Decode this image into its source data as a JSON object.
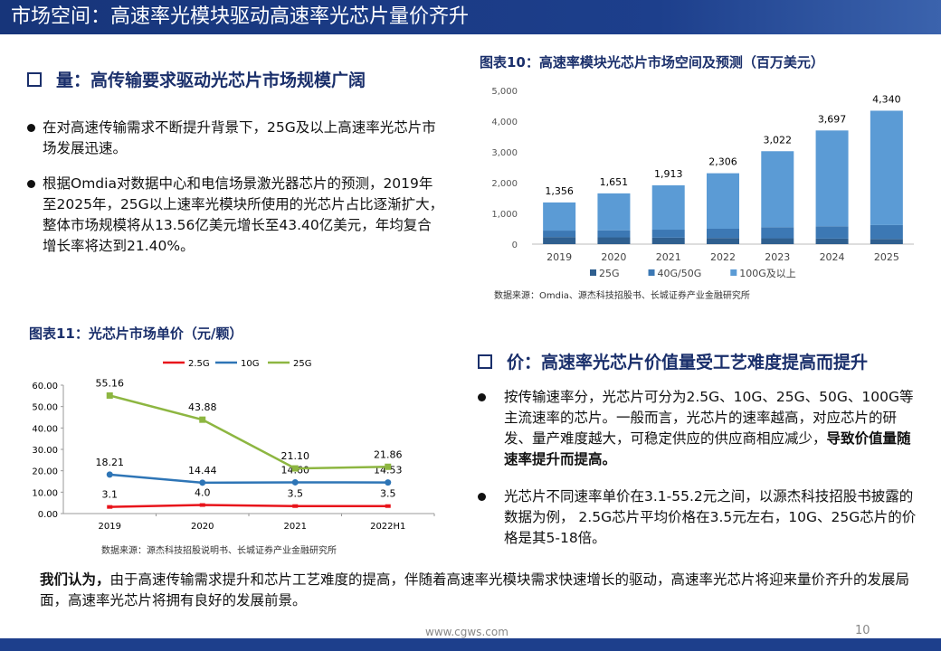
{
  "header": {
    "title": "市场空间：高速率光模块驱动高速率光芯片量价齐升"
  },
  "left_section": {
    "heading": "量：高传输要求驱动光芯片市场规模广阔",
    "bullets": [
      "在对高速传输需求不断提升背景下，25G及以上高速率光芯片市场发展迅速。",
      "根据Omdia对数据中心和电信场景激光器芯片的预测，2019年至2025年，25G以上速率光模块所使用的光芯片占比逐渐扩大，整体市场规模将从13.56亿美元增长至43.40亿美元，年均复合增长率将达到21.40%。"
    ]
  },
  "right_section": {
    "heading": "价：高速率光芯片价值量受工艺难度提高而提升",
    "bullets": [
      {
        "text": "按传输速率分，光芯片可分为2.5G、10G、25G、50G、100G等主流速率的芯片。一般而言，光芯片的速率越高，对应芯片的研发、量产难度越大，可稳定供应的供应商相应减少，",
        "bold": "导致价值量随速率提升而提高。"
      },
      {
        "text": "光芯片不同速率单价在3.1-55.2元之间，以源杰科技招股书披露的数据为例， 2.5G芯片平均价格在3.5元左右，10G、25G芯片的价格是其5-18倍。"
      }
    ]
  },
  "conclusion": {
    "bold": "我们认为，",
    "text": "由于高速传输需求提升和芯片工艺难度的提高，伴随着高速率光模块需求快速增长的驱动，高速率光芯片将迎来量价齐升的发展局面，高速率光芯片将拥有良好的发展前景。"
  },
  "footer": {
    "url": "www.cgws.com",
    "page": "10"
  },
  "chart_data": [
    {
      "type": "stacked-bar",
      "title": "图表10：高速率模块光芯片市场空间及预测（百万美元）",
      "source": "数据来源：Omdia、源杰科技招股书、长城证券产业金融研究所",
      "categories": [
        "2019",
        "2020",
        "2021",
        "2022",
        "2023",
        "2024",
        "2025"
      ],
      "series": [
        {
          "name": "25G",
          "color": "#2f5f8f",
          "values": [
            230,
            220,
            210,
            200,
            190,
            180,
            170
          ]
        },
        {
          "name": "40G/50G",
          "color": "#3c78b4",
          "values": [
            210,
            230,
            260,
            300,
            360,
            400,
            450
          ]
        },
        {
          "name": "100G及以上",
          "color": "#5b9bd5",
          "values": [
            916,
            1201,
            1443,
            1806,
            2472,
            3117,
            3720
          ]
        }
      ],
      "totals": {
        "values": [
          1356,
          1651,
          1913,
          2306,
          3022,
          3697,
          4340
        ],
        "value_labels": [
          "1,356",
          "1,651",
          "1,913",
          "2,306",
          "3,022",
          "3,697",
          "4,340"
        ]
      },
      "ylim": [
        0,
        5000
      ],
      "yticks": [
        0,
        {
          "value": 1000,
          "label": "1,000"
        },
        {
          "value": 2000,
          "label": "2,000"
        },
        {
          "value": 3000,
          "label": "3,000"
        },
        {
          "value": 4000,
          "label": "4,000"
        },
        {
          "value": 5000,
          "label": "5,000"
        }
      ],
      "grid": false
    },
    {
      "type": "line",
      "title": "图表11：光芯片市场单价（元/颗）",
      "source": "数据来源：源杰科技招股说明书、长城证券产业金融研究所",
      "categories": [
        "2019",
        "2020",
        "2021",
        "2022H1"
      ],
      "series": [
        {
          "name": "2.5G",
          "color": "#e8141b",
          "values": [
            3.1,
            4.0,
            3.5,
            3.5
          ],
          "value_labels": [
            "3.1",
            "4.0",
            "3.5",
            "3.5"
          ]
        },
        {
          "name": "10G",
          "color": "#2e75b6",
          "values": [
            18.21,
            14.44,
            14.6,
            14.53
          ],
          "value_labels": [
            "18.21",
            "14.44",
            "14.60",
            "14.53"
          ]
        },
        {
          "name": "25G",
          "color": "#8db641",
          "values": [
            55.16,
            43.88,
            21.1,
            21.86
          ],
          "value_labels": [
            "55.16",
            "43.88",
            "21.10",
            "21.86"
          ]
        }
      ],
      "ylim": [
        0,
        60
      ],
      "yticks": [
        {
          "value": 0,
          "label": "0.00"
        },
        {
          "value": 10,
          "label": "10.00"
        },
        {
          "value": 20,
          "label": "20.00"
        },
        {
          "value": 30,
          "label": "30.00"
        },
        {
          "value": 40,
          "label": "40.00"
        },
        {
          "value": 50,
          "label": "50.00"
        },
        {
          "value": 60,
          "label": "60.00"
        }
      ],
      "grid": false
    }
  ]
}
